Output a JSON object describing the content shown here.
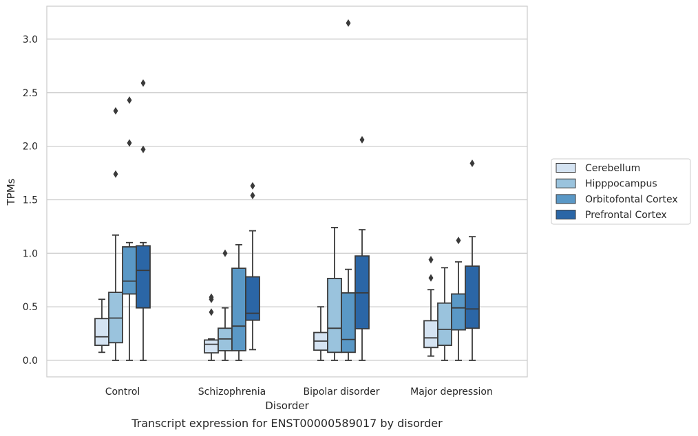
{
  "caption": "Transcript expression for ENST00000589017 by disorder",
  "chart_data": {
    "type": "box",
    "title": "",
    "xlabel": "Disorder",
    "ylabel": "TPMs",
    "ylim": [
      -0.15,
      3.3
    ],
    "yticks": [
      0.0,
      0.5,
      1.0,
      1.5,
      2.0,
      2.5,
      3.0
    ],
    "ytick_labels": [
      "0.0",
      "0.5",
      "1.0",
      "1.5",
      "2.0",
      "2.5",
      "3.0"
    ],
    "grid": "horizontal",
    "legend_position": "right",
    "categories": [
      "Control",
      "Schizophrenia",
      "Bipolar disorder",
      "Major depression"
    ],
    "series": [
      {
        "name": "Cerebellum",
        "color": "#d4e3f2",
        "boxes": [
          {
            "whislo": 0.075,
            "q1": 0.14,
            "median": 0.22,
            "q3": 0.39,
            "whishi": 0.57,
            "fliers": []
          },
          {
            "whislo": 0.0,
            "q1": 0.07,
            "median": 0.15,
            "q3": 0.19,
            "whishi": 0.2,
            "fliers": [
              0.45,
              0.57,
              0.59
            ]
          },
          {
            "whislo": 0.0,
            "q1": 0.095,
            "median": 0.18,
            "q3": 0.26,
            "whishi": 0.5,
            "fliers": []
          },
          {
            "whislo": 0.04,
            "q1": 0.12,
            "median": 0.21,
            "q3": 0.37,
            "whishi": 0.66,
            "fliers": [
              0.77,
              0.94
            ]
          }
        ]
      },
      {
        "name": "Hipppocampus",
        "color": "#9ac3dd",
        "boxes": [
          {
            "whislo": 0.0,
            "q1": 0.165,
            "median": 0.395,
            "q3": 0.635,
            "whishi": 1.17,
            "fliers": [
              1.74,
              2.33
            ]
          },
          {
            "whislo": 0.0,
            "q1": 0.09,
            "median": 0.2,
            "q3": 0.3,
            "whishi": 0.49,
            "fliers": [
              1.0
            ]
          },
          {
            "whislo": 0.0,
            "q1": 0.075,
            "median": 0.3,
            "q3": 0.765,
            "whishi": 1.24,
            "fliers": []
          },
          {
            "whislo": 0.0,
            "q1": 0.14,
            "median": 0.29,
            "q3": 0.535,
            "whishi": 0.865,
            "fliers": []
          }
        ]
      },
      {
        "name": "Orbitofontal Cortex",
        "color": "#5a98c6",
        "boxes": [
          {
            "whislo": 0.0,
            "q1": 0.62,
            "median": 0.74,
            "q3": 1.06,
            "whishi": 1.1,
            "fliers": [
              2.03,
              2.43
            ]
          },
          {
            "whislo": 0.0,
            "q1": 0.09,
            "median": 0.32,
            "q3": 0.86,
            "whishi": 1.08,
            "fliers": []
          },
          {
            "whislo": 0.0,
            "q1": 0.075,
            "median": 0.195,
            "q3": 0.63,
            "whishi": 0.85,
            "fliers": [
              3.15
            ]
          },
          {
            "whislo": 0.0,
            "q1": 0.285,
            "median": 0.49,
            "q3": 0.62,
            "whishi": 0.92,
            "fliers": [
              1.12
            ]
          }
        ]
      },
      {
        "name": "Prefrontal Cortex",
        "color": "#2b66a6",
        "boxes": [
          {
            "whislo": 0.0,
            "q1": 0.49,
            "median": 0.84,
            "q3": 1.07,
            "whishi": 1.1,
            "fliers": [
              1.97,
              2.59
            ]
          },
          {
            "whislo": 0.1,
            "q1": 0.375,
            "median": 0.44,
            "q3": 0.78,
            "whishi": 1.21,
            "fliers": [
              1.54,
              1.63
            ]
          },
          {
            "whislo": 0.0,
            "q1": 0.295,
            "median": 0.63,
            "q3": 0.975,
            "whishi": 1.22,
            "fliers": [
              2.06
            ]
          },
          {
            "whislo": 0.0,
            "q1": 0.3,
            "median": 0.48,
            "q3": 0.88,
            "whishi": 1.155,
            "fliers": [
              1.84
            ]
          }
        ]
      }
    ]
  }
}
